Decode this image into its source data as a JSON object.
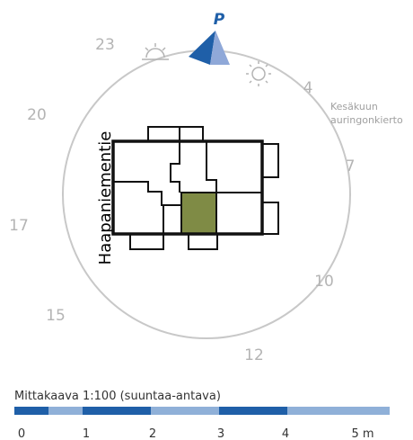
{
  "north": "P",
  "hours": [
    "23",
    "4",
    "7",
    "10",
    "12",
    "15",
    "17",
    "20"
  ],
  "sun_path_note": [
    "Kesäkuun",
    "auringonkierto"
  ],
  "street": "Haapaniementie",
  "scale": {
    "title": "Mittakaava 1:100  (suuntaa-antava)",
    "labels": [
      "0",
      "1",
      "2",
      "3",
      "4",
      "5 m"
    ]
  }
}
